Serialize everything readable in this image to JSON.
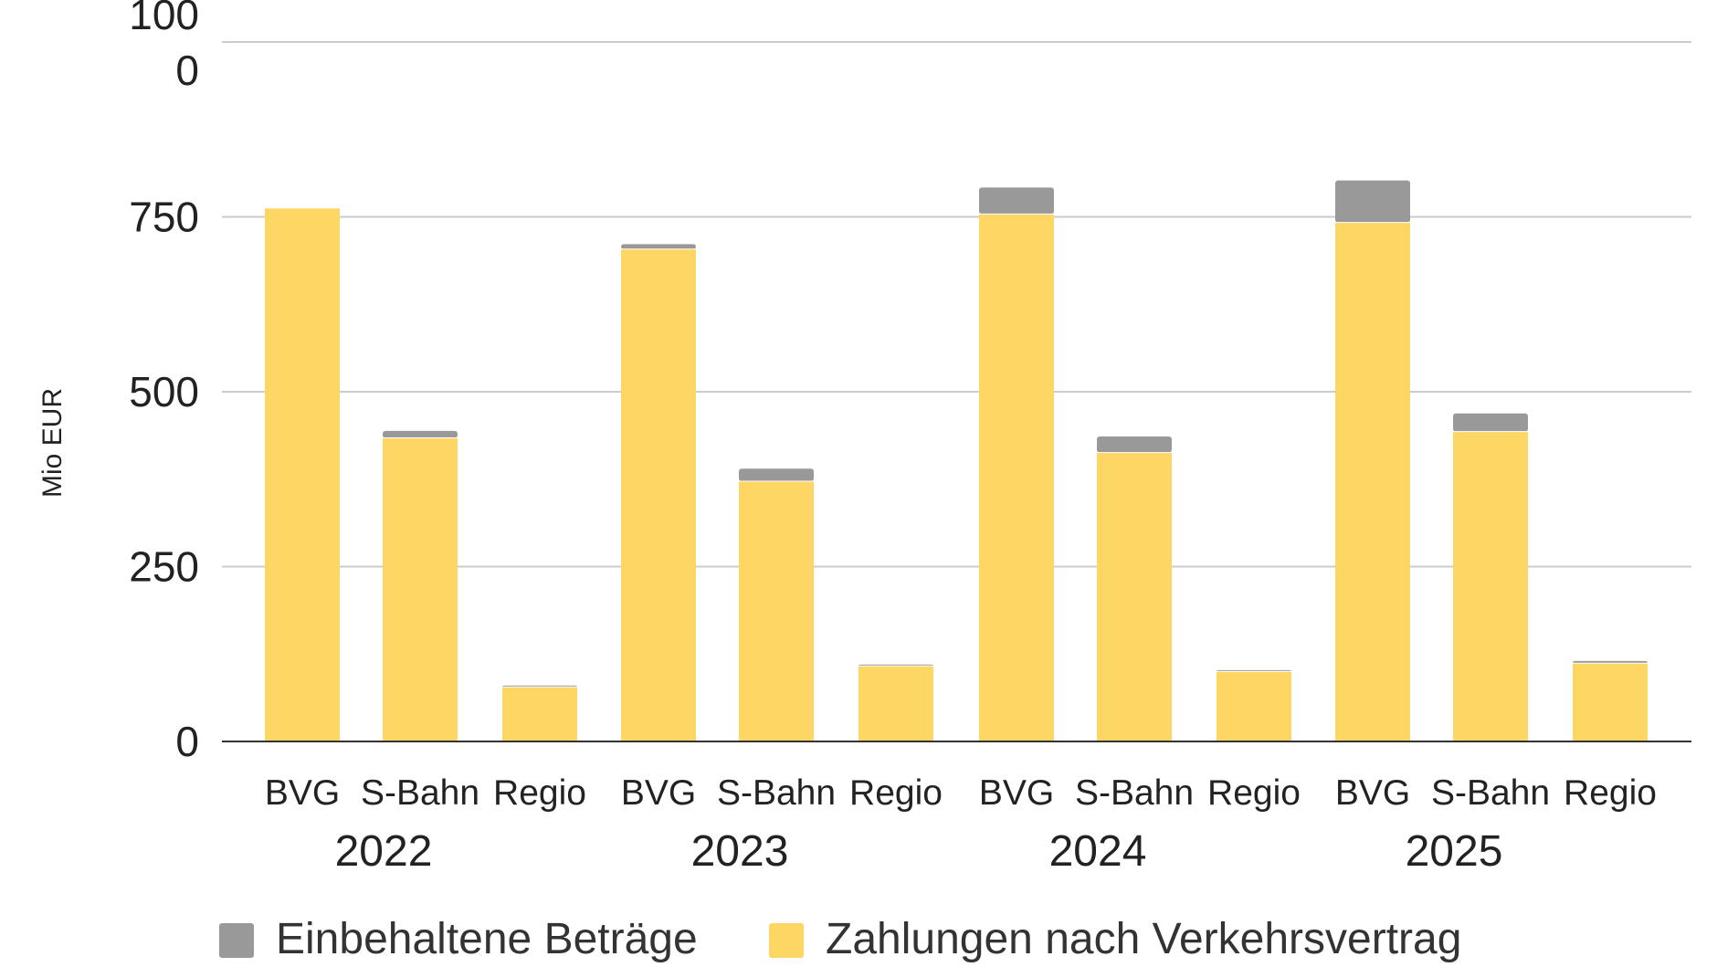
{
  "chart_data": {
    "type": "bar",
    "stacked": true,
    "ylabel": "Mio EUR",
    "ylim": [
      0,
      1000
    ],
    "yticks": [
      0,
      250,
      500,
      750,
      1000
    ],
    "ytick_labels": [
      "0",
      "250",
      "500",
      "750",
      "100\n0"
    ],
    "grid": true,
    "legend_position": "bottom",
    "groups": [
      {
        "label": "2022",
        "categories": [
          "BVG",
          "S-Bahn",
          "Regio"
        ]
      },
      {
        "label": "2023",
        "categories": [
          "BVG",
          "S-Bahn",
          "Regio"
        ]
      },
      {
        "label": "2024",
        "categories": [
          "BVG",
          "S-Bahn",
          "Regio"
        ]
      },
      {
        "label": "2025",
        "categories": [
          "BVG",
          "S-Bahn",
          "Regio"
        ]
      }
    ],
    "series": [
      {
        "name": "Zahlungen nach Verkehrsvertrag",
        "color": "#FDD663",
        "values": [
          762,
          434,
          78,
          704,
          372,
          108,
          754,
          413,
          100,
          742,
          443,
          112
        ]
      },
      {
        "name": "Einbehaltene Beträge",
        "color": "#999999",
        "values": [
          0,
          10,
          2,
          7,
          18,
          2,
          38,
          23,
          2,
          60,
          26,
          3
        ]
      }
    ],
    "legend_order": [
      "Einbehaltene Beträge",
      "Zahlungen nach Verkehrsvertrag"
    ]
  }
}
